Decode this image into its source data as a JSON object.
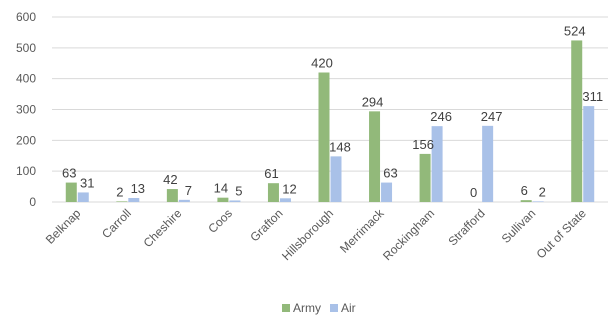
{
  "chart_data": {
    "type": "bar",
    "categories": [
      "Belknap",
      "Carroll",
      "Cheshire",
      "Coos",
      "Grafton",
      "Hillsborough",
      "Merrimack",
      "Rockingham",
      "Strafford",
      "Sullivan",
      "Out of State"
    ],
    "series": [
      {
        "name": "Army",
        "color": "#92b97a",
        "values": [
          63,
          2,
          42,
          14,
          61,
          420,
          294,
          156,
          0,
          6,
          524
        ]
      },
      {
        "name": "Air",
        "color": "#a9c1e8",
        "values": [
          31,
          13,
          7,
          5,
          12,
          148,
          63,
          246,
          247,
          2,
          311
        ]
      }
    ],
    "y_ticks": [
      0,
      100,
      200,
      300,
      400,
      500,
      600
    ],
    "ylim": [
      0,
      600
    ],
    "grid": true,
    "legend_position": "bottom",
    "data_labels": true
  }
}
